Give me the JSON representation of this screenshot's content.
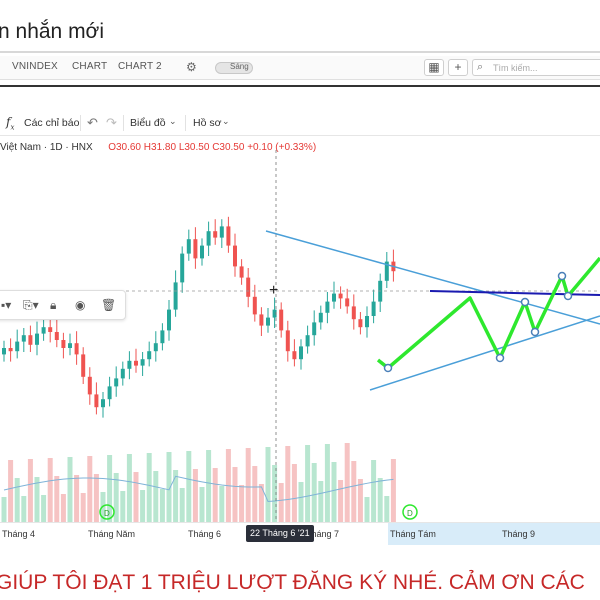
{
  "window": {
    "title": "n nhắn mới"
  },
  "chart_toolbar": {
    "tabs": [
      "VNINDEX",
      "CHART",
      "CHART 2"
    ],
    "theme_toggle": "Sáng",
    "search_placeholder": "Tìm kiếm..."
  },
  "toolbar": {
    "indicators": "Các chỉ báo",
    "chart_type": "Biểu đồ",
    "profile": "Hồ sơ"
  },
  "legend": {
    "symbol": "Việt Nam · 1D · HNX",
    "open": "O30.60",
    "high": "H31.80",
    "low": "L30.50",
    "close": "C30.50",
    "change": "+0.10 (+0.33%)"
  },
  "xaxis": {
    "labels": [
      "Tháng 4",
      "Tháng Năm",
      "Tháng 6",
      "Tháng 7",
      "Tháng Tám",
      "Tháng 9"
    ],
    "crosshair_label": "22 Tháng 6 '21"
  },
  "colors": {
    "up": "#26a69a",
    "down": "#ef5350",
    "trendline": "#4a9fd8",
    "zigzag": "#2ee82e",
    "resistance": "#1a1ab0",
    "subtitle": "#c62828"
  },
  "subtitle": {
    "text": "GIÚP TÔI ĐẠT 1 TRIỆU LƯỢT ĐĂNG KÝ NHÉ. CẢM ƠN CÁC"
  },
  "chart_data": {
    "type": "candlestick",
    "title": "",
    "xlabel": "",
    "ylabel": "",
    "grid": true,
    "series": [
      {
        "name": "",
        "values": [
          16.0,
          15.8,
          16.4,
          16.8,
          16.2,
          16.9,
          17.3,
          17.0,
          16.5,
          16.0,
          16.3,
          15.6,
          14.2,
          13.1,
          12.3,
          12.8,
          13.6,
          14.1,
          14.7,
          15.2,
          14.9,
          15.3,
          15.8,
          16.3,
          17.1,
          18.4,
          20.1,
          21.9,
          22.8,
          21.6,
          22.4,
          23.3,
          22.9,
          23.6,
          22.4,
          21.1,
          20.4,
          19.2,
          18.1,
          17.4,
          17.9,
          18.4,
          17.1,
          15.8,
          15.3,
          16.1,
          16.8,
          17.6,
          18.2,
          18.9,
          19.4,
          19.1,
          18.6,
          17.8,
          17.3,
          18.0,
          18.9,
          20.2,
          21.4,
          20.8
        ]
      }
    ]
  }
}
